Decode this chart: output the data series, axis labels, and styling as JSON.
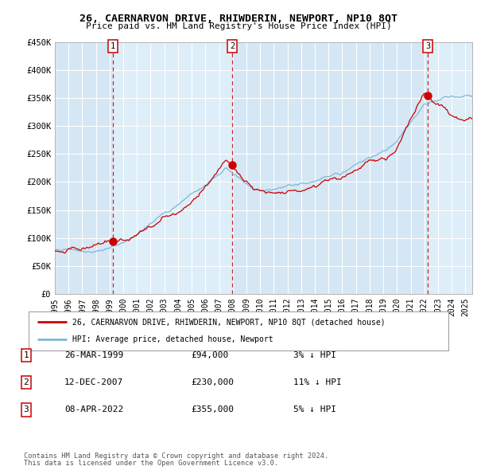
{
  "title": "26, CAERNARVON DRIVE, RHIWDERIN, NEWPORT, NP10 8QT",
  "subtitle": "Price paid vs. HM Land Registry's House Price Index (HPI)",
  "x_start": 1995.0,
  "x_end": 2025.5,
  "y_min": 0,
  "y_max": 450000,
  "y_ticks": [
    0,
    50000,
    100000,
    150000,
    200000,
    250000,
    300000,
    350000,
    400000,
    450000
  ],
  "y_tick_labels": [
    "£0",
    "£50K",
    "£100K",
    "£150K",
    "£200K",
    "£250K",
    "£300K",
    "£350K",
    "£400K",
    "£450K"
  ],
  "x_ticks": [
    1995,
    1996,
    1997,
    1998,
    1999,
    2000,
    2001,
    2002,
    2003,
    2004,
    2005,
    2006,
    2007,
    2008,
    2009,
    2010,
    2011,
    2012,
    2013,
    2014,
    2015,
    2016,
    2017,
    2018,
    2019,
    2020,
    2021,
    2022,
    2023,
    2024,
    2025
  ],
  "sale_dates": [
    1999.24,
    2007.95,
    2022.27
  ],
  "sale_prices": [
    94000,
    230000,
    355000
  ],
  "sale_labels": [
    "1",
    "2",
    "3"
  ],
  "hpi_color": "#7db8d8",
  "price_color": "#cc0000",
  "vline_color": "#cc0000",
  "bg_color": "#ddeef8",
  "stripe_color": "#cce0f0",
  "legend_label_price": "26, CAERNARVON DRIVE, RHIWDERIN, NEWPORT, NP10 8QT (detached house)",
  "legend_label_hpi": "HPI: Average price, detached house, Newport",
  "table_rows": [
    [
      "1",
      "26-MAR-1999",
      "£94,000",
      "3% ↓ HPI"
    ],
    [
      "2",
      "12-DEC-2007",
      "£230,000",
      "11% ↓ HPI"
    ],
    [
      "3",
      "08-APR-2022",
      "£355,000",
      "5% ↓ HPI"
    ]
  ],
  "footnote1": "Contains HM Land Registry data © Crown copyright and database right 2024.",
  "footnote2": "This data is licensed under the Open Government Licence v3.0."
}
